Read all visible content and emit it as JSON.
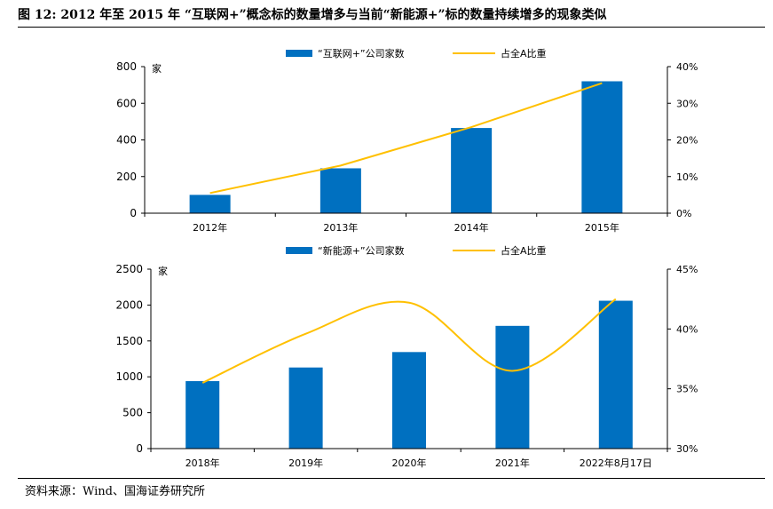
{
  "figure_title": "图 12:  2012 年至 2015 年  “互联网+”概念标的数量增多与当前“新能源+”标的数量持续增多的现象类似",
  "source_note": "资料来源：Wind、国海证券研究所",
  "colors": {
    "bar": "#0070C0",
    "line": "#FFC000"
  },
  "chart_data": [
    {
      "type": "bar",
      "categories": [
        "2012年",
        "2013年",
        "2014年",
        "2015年"
      ],
      "series": [
        {
          "name": "“互联网+”公司家数",
          "type": "bar",
          "axis": "left",
          "values": [
            100,
            245,
            465,
            720
          ]
        },
        {
          "name": "占全A比重",
          "type": "line",
          "axis": "right",
          "values": [
            0.055,
            0.13,
            0.235,
            0.355
          ]
        }
      ],
      "y_unit_label": "家",
      "ylim": [
        0,
        800
      ],
      "yticks": [
        "0",
        "200",
        "400",
        "600",
        "800"
      ],
      "y2lim": [
        0,
        0.4
      ],
      "y2ticks": [
        "0%",
        "10%",
        "20%",
        "30%",
        "40%"
      ],
      "legend_position": "top-center",
      "grid": false
    },
    {
      "type": "bar",
      "categories": [
        "2018年",
        "2019年",
        "2020年",
        "2021年",
        "2022年8月17日"
      ],
      "series": [
        {
          "name": "“新能源+”公司家数",
          "type": "bar",
          "axis": "left",
          "values": [
            940,
            1130,
            1345,
            1710,
            2060
          ]
        },
        {
          "name": "占全A比重",
          "type": "line",
          "axis": "right",
          "values": [
            0.355,
            0.396,
            0.422,
            0.365,
            0.425
          ]
        }
      ],
      "y_unit_label": "家",
      "ylim": [
        0,
        2500
      ],
      "yticks": [
        "0",
        "500",
        "1000",
        "1500",
        "2000",
        "2500"
      ],
      "y2lim": [
        0.3,
        0.45
      ],
      "y2ticks": [
        "30%",
        "35%",
        "40%",
        "45%"
      ],
      "legend_position": "top-center",
      "grid": false
    }
  ]
}
